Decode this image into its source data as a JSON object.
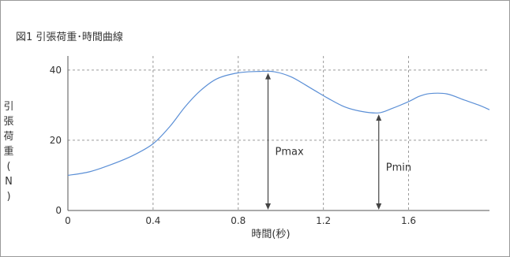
{
  "chart_data": {
    "type": "line",
    "title": "図1 引張荷重･時間曲線",
    "xlabel": "時間(秒)",
    "ylabel_chars": [
      "引",
      "張",
      "荷",
      "重",
      "(",
      "N",
      ")"
    ],
    "xlim": [
      0,
      1.98
    ],
    "ylim": [
      0,
      44
    ],
    "xticks": [
      0,
      0.4,
      0.8,
      1.2,
      1.6
    ],
    "xtick_labels": [
      "0",
      "0.4",
      "0.8",
      "1.2",
      "1.6"
    ],
    "yticks": [
      0,
      20,
      40
    ],
    "ytick_labels": [
      "0",
      "20",
      "40"
    ],
    "grid": "dashed",
    "series": [
      {
        "color": "#5b8fd6",
        "x": [
          0,
          0.1,
          0.2,
          0.3,
          0.4,
          0.48,
          0.55,
          0.62,
          0.7,
          0.8,
          0.9,
          0.97,
          1.05,
          1.15,
          1.22,
          1.3,
          1.38,
          1.46,
          1.52,
          1.6,
          1.65,
          1.7,
          1.78,
          1.86,
          1.93,
          1.98
        ],
        "y": [
          10,
          11,
          13,
          15.5,
          19,
          24,
          29.5,
          34,
          37.5,
          39.2,
          39.6,
          39.5,
          38,
          34.5,
          32,
          29.5,
          28.2,
          27.8,
          29,
          31,
          32.5,
          33.3,
          33.2,
          31.5,
          30,
          28.7
        ]
      }
    ],
    "annotations": [
      {
        "label": "Pmax",
        "x": 0.94,
        "y_from": 0,
        "y_to": 39.6,
        "label_y": 17
      },
      {
        "label": "Pmin",
        "x": 1.46,
        "y_from": 0,
        "y_to": 27.8,
        "label_y": 12.5
      }
    ]
  }
}
